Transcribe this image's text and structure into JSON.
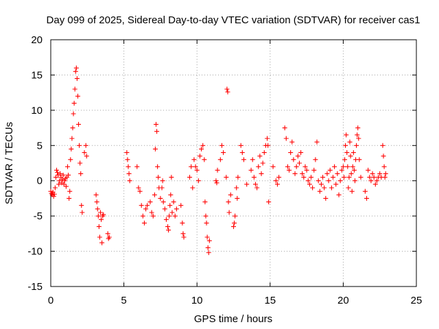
{
  "chart_data": {
    "type": "scatter",
    "title": "Day 099 of 2025, Sidereal Day-to-day VTEC variation (SDTVAR) for receiver cas1",
    "xlabel": "GPS time / hours",
    "ylabel": "SDTVAR / TECUs",
    "xlim": [
      0,
      25
    ],
    "ylim": [
      -15,
      20
    ],
    "x_ticks": [
      "0",
      "5",
      "10",
      "15",
      "20",
      "25"
    ],
    "y_ticks": [
      "-15",
      "-10",
      "-5",
      "0",
      "5",
      "10",
      "15",
      "20"
    ],
    "grid": true,
    "marker": "plus",
    "color": "#ff0000",
    "series": [
      {
        "name": "SDTVAR",
        "points": [
          [
            0.0,
            -1.5
          ],
          [
            0.05,
            -1.8
          ],
          [
            0.1,
            -2.0
          ],
          [
            0.15,
            -1.6
          ],
          [
            0.2,
            -2.2
          ],
          [
            0.25,
            -1.9
          ],
          [
            0.3,
            -1.0
          ],
          [
            0.35,
            0.5
          ],
          [
            0.4,
            1.5
          ],
          [
            0.45,
            1.2
          ],
          [
            0.5,
            0.8
          ],
          [
            0.55,
            -0.5
          ],
          [
            0.6,
            0.0
          ],
          [
            0.65,
            1.0
          ],
          [
            0.7,
            0.5
          ],
          [
            0.75,
            -0.3
          ],
          [
            0.8,
            0.2
          ],
          [
            0.85,
            0.8
          ],
          [
            0.9,
            -0.5
          ],
          [
            0.95,
            0.0
          ],
          [
            1.0,
            0.3
          ],
          [
            1.05,
            -0.8
          ],
          [
            1.1,
            0.5
          ],
          [
            1.15,
            2.0
          ],
          [
            1.2,
            0.8
          ],
          [
            1.25,
            -2.5
          ],
          [
            1.3,
            -1.5
          ],
          [
            1.35,
            3.0
          ],
          [
            1.4,
            4.5
          ],
          [
            1.45,
            6.0
          ],
          [
            1.5,
            7.5
          ],
          [
            1.55,
            9.5
          ],
          [
            1.6,
            11.0
          ],
          [
            1.65,
            13.0
          ],
          [
            1.7,
            15.5
          ],
          [
            1.75,
            16.0
          ],
          [
            1.8,
            14.5
          ],
          [
            1.85,
            12.0
          ],
          [
            1.9,
            8.0
          ],
          [
            1.95,
            5.0
          ],
          [
            2.0,
            2.5
          ],
          [
            2.05,
            1.0
          ],
          [
            2.1,
            -3.5
          ],
          [
            2.15,
            -4.5
          ],
          [
            2.3,
            4.0
          ],
          [
            2.4,
            5.0
          ],
          [
            2.45,
            3.5
          ],
          [
            3.1,
            -2.0
          ],
          [
            3.15,
            -3.0
          ],
          [
            3.2,
            -4.0
          ],
          [
            3.25,
            -5.0
          ],
          [
            3.3,
            -6.5
          ],
          [
            3.35,
            -8.0
          ],
          [
            3.4,
            -4.5
          ],
          [
            3.45,
            -5.5
          ],
          [
            3.5,
            -8.8
          ],
          [
            3.55,
            -5.0
          ],
          [
            3.6,
            -4.8
          ],
          [
            3.9,
            -7.5
          ],
          [
            3.95,
            -8.2
          ],
          [
            4.0,
            -8.0
          ],
          [
            5.2,
            4.0
          ],
          [
            5.25,
            3.0
          ],
          [
            5.3,
            2.0
          ],
          [
            5.35,
            1.0
          ],
          [
            5.4,
            0.0
          ],
          [
            5.9,
            2.0
          ],
          [
            6.0,
            -1.0
          ],
          [
            6.1,
            -1.5
          ],
          [
            6.2,
            -3.5
          ],
          [
            6.3,
            -5.0
          ],
          [
            6.4,
            -6.0
          ],
          [
            6.5,
            -4.0
          ],
          [
            6.6,
            -3.5
          ],
          [
            6.8,
            -3.0
          ],
          [
            6.9,
            -4.5
          ],
          [
            7.0,
            -5.0
          ],
          [
            7.1,
            -2.0
          ],
          [
            7.15,
            4.5
          ],
          [
            7.2,
            8.0
          ],
          [
            7.25,
            7.0
          ],
          [
            7.3,
            2.0
          ],
          [
            7.35,
            0.5
          ],
          [
            7.4,
            -1.0
          ],
          [
            7.5,
            -2.5
          ],
          [
            7.6,
            -1.0
          ],
          [
            7.65,
            0.0
          ],
          [
            7.7,
            -3.0
          ],
          [
            7.8,
            -4.0
          ],
          [
            7.9,
            -5.5
          ],
          [
            8.0,
            -6.5
          ],
          [
            8.05,
            -7.0
          ],
          [
            8.1,
            -5.0
          ],
          [
            8.15,
            -3.5
          ],
          [
            8.2,
            -2.0
          ],
          [
            8.25,
            0.5
          ],
          [
            8.3,
            -4.5
          ],
          [
            8.4,
            -3.0
          ],
          [
            8.5,
            -5.0
          ],
          [
            8.6,
            -4.0
          ],
          [
            8.9,
            -3.5
          ],
          [
            9.0,
            -6.0
          ],
          [
            9.05,
            -7.5
          ],
          [
            9.1,
            -8.0
          ],
          [
            9.5,
            0.5
          ],
          [
            9.6,
            2.0
          ],
          [
            9.7,
            -1.0
          ],
          [
            9.8,
            3.0
          ],
          [
            9.9,
            2.0
          ],
          [
            10.0,
            1.5
          ],
          [
            10.1,
            0.0
          ],
          [
            10.2,
            3.5
          ],
          [
            10.3,
            4.5
          ],
          [
            10.4,
            5.0
          ],
          [
            10.5,
            3.0
          ],
          [
            10.55,
            -3.0
          ],
          [
            10.6,
            -5.0
          ],
          [
            10.65,
            -6.0
          ],
          [
            10.7,
            -8.0
          ],
          [
            10.75,
            -9.5
          ],
          [
            10.8,
            -10.2
          ],
          [
            10.85,
            -8.5
          ],
          [
            11.3,
            0.0
          ],
          [
            11.35,
            -0.3
          ],
          [
            11.4,
            1.5
          ],
          [
            11.6,
            3.0
          ],
          [
            11.7,
            5.0
          ],
          [
            11.8,
            4.0
          ],
          [
            12.0,
            0.5
          ],
          [
            12.05,
            13.0
          ],
          [
            12.1,
            12.6
          ],
          [
            12.15,
            -3.0
          ],
          [
            12.2,
            -4.5
          ],
          [
            12.3,
            -2.0
          ],
          [
            12.5,
            -6.5
          ],
          [
            12.55,
            -6.0
          ],
          [
            12.6,
            -5.0
          ],
          [
            12.7,
            -1.0
          ],
          [
            12.75,
            -2.5
          ],
          [
            12.8,
            0.5
          ],
          [
            13.0,
            5.0
          ],
          [
            13.1,
            4.0
          ],
          [
            13.2,
            3.0
          ],
          [
            13.4,
            -0.5
          ],
          [
            13.7,
            1.5
          ],
          [
            13.8,
            3.0
          ],
          [
            13.9,
            0.5
          ],
          [
            14.0,
            -0.5
          ],
          [
            14.1,
            -1.0
          ],
          [
            14.2,
            2.0
          ],
          [
            14.3,
            3.5
          ],
          [
            14.4,
            1.0
          ],
          [
            14.5,
            2.5
          ],
          [
            14.6,
            4.0
          ],
          [
            14.7,
            5.0
          ],
          [
            14.8,
            6.0
          ],
          [
            14.85,
            5.0
          ],
          [
            14.9,
            -3.0
          ],
          [
            15.2,
            2.0
          ],
          [
            15.4,
            0.0
          ],
          [
            15.5,
            -0.5
          ],
          [
            15.6,
            0.5
          ],
          [
            16.0,
            7.5
          ],
          [
            16.1,
            6.0
          ],
          [
            16.2,
            2.0
          ],
          [
            16.3,
            1.5
          ],
          [
            16.4,
            4.0
          ],
          [
            16.5,
            5.5
          ],
          [
            16.6,
            3.0
          ],
          [
            16.7,
            1.0
          ],
          [
            16.8,
            2.0
          ],
          [
            16.9,
            3.5
          ],
          [
            17.0,
            2.5
          ],
          [
            17.1,
            4.0
          ],
          [
            17.2,
            1.0
          ],
          [
            17.3,
            0.5
          ],
          [
            17.4,
            2.0
          ],
          [
            17.5,
            1.5
          ],
          [
            17.6,
            0.0
          ],
          [
            17.7,
            -0.5
          ],
          [
            17.8,
            0.5
          ],
          [
            17.9,
            -1.0
          ],
          [
            18.0,
            1.5
          ],
          [
            18.1,
            3.0
          ],
          [
            18.2,
            5.5
          ],
          [
            18.3,
            0.0
          ],
          [
            18.4,
            -1.5
          ],
          [
            18.5,
            -0.5
          ],
          [
            18.6,
            0.5
          ],
          [
            18.7,
            -1.0
          ],
          [
            18.8,
            -2.5
          ],
          [
            18.9,
            1.0
          ],
          [
            19.0,
            0.0
          ],
          [
            19.1,
            1.5
          ],
          [
            19.2,
            -1.0
          ],
          [
            19.3,
            0.5
          ],
          [
            19.4,
            2.0
          ],
          [
            19.5,
            -0.5
          ],
          [
            19.6,
            1.0
          ],
          [
            19.7,
            -2.0
          ],
          [
            19.8,
            0.0
          ],
          [
            19.9,
            1.5
          ],
          [
            20.0,
            2.0
          ],
          [
            20.05,
            0.5
          ],
          [
            20.1,
            3.0
          ],
          [
            20.15,
            5.0
          ],
          [
            20.2,
            6.5
          ],
          [
            20.25,
            4.0
          ],
          [
            20.3,
            2.0
          ],
          [
            20.35,
            -1.0
          ],
          [
            20.4,
            0.5
          ],
          [
            20.45,
            5.5
          ],
          [
            20.5,
            3.5
          ],
          [
            20.55,
            1.0
          ],
          [
            20.6,
            -1.5
          ],
          [
            20.65,
            2.0
          ],
          [
            20.7,
            4.0
          ],
          [
            20.75,
            1.5
          ],
          [
            20.8,
            0.0
          ],
          [
            20.85,
            3.0
          ],
          [
            20.9,
            5.0
          ],
          [
            20.95,
            6.5
          ],
          [
            21.0,
            7.5
          ],
          [
            21.05,
            6.0
          ],
          [
            21.1,
            3.0
          ],
          [
            21.2,
            0.5
          ],
          [
            21.5,
            -1.5
          ],
          [
            21.6,
            -2.5
          ],
          [
            21.7,
            1.5
          ],
          [
            21.8,
            0.5
          ],
          [
            21.9,
            0.0
          ],
          [
            22.0,
            1.0
          ],
          [
            22.1,
            0.5
          ],
          [
            22.2,
            -0.5
          ],
          [
            22.3,
            0.0
          ],
          [
            22.4,
            0.5
          ],
          [
            22.5,
            1.0
          ],
          [
            22.6,
            0.5
          ],
          [
            22.7,
            5.0
          ],
          [
            22.75,
            3.5
          ],
          [
            22.8,
            2.0
          ],
          [
            22.85,
            0.5
          ],
          [
            22.9,
            1.0
          ]
        ]
      }
    ]
  }
}
